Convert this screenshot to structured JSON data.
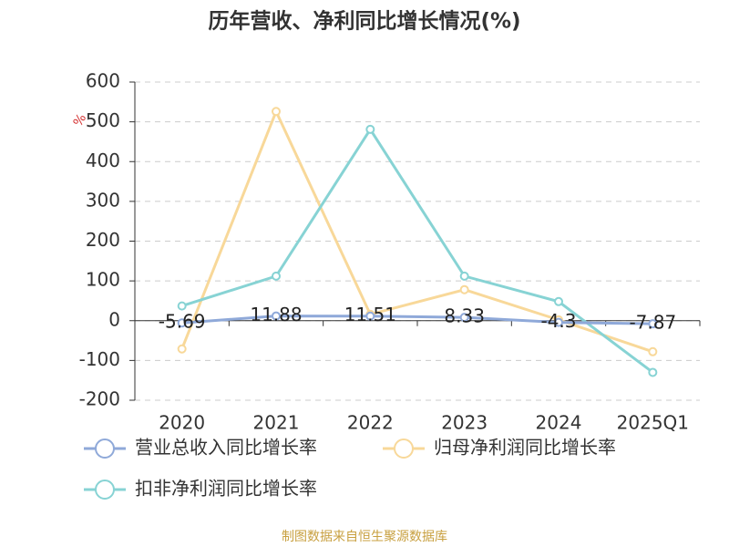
{
  "chart_data": {
    "type": "line",
    "title": "历年营收、净利同比增长情况(%)",
    "unit": "%",
    "categories": [
      "2020",
      "2021",
      "2022",
      "2023",
      "2024",
      "2025Q1"
    ],
    "series": [
      {
        "name": "营业总收入同比增长率",
        "color": "#8fa9d9",
        "values": [
          -5.69,
          11.88,
          11.51,
          8.33,
          -4.3,
          -7.87
        ]
      },
      {
        "name": "归母净利润同比增长率",
        "color": "#f8d899",
        "values": [
          -71,
          526,
          16,
          78,
          2,
          -78
        ]
      },
      {
        "name": "扣非净利润同比增长率",
        "color": "#87d3d4",
        "values": [
          37,
          112,
          481,
          112,
          48,
          -130
        ]
      }
    ],
    "ylim": [
      -200,
      600
    ],
    "yticks": [
      -200,
      -100,
      0,
      100,
      200,
      300,
      400,
      500,
      600
    ],
    "grid": true,
    "source": "制图数据来自恒生聚源数据库"
  }
}
